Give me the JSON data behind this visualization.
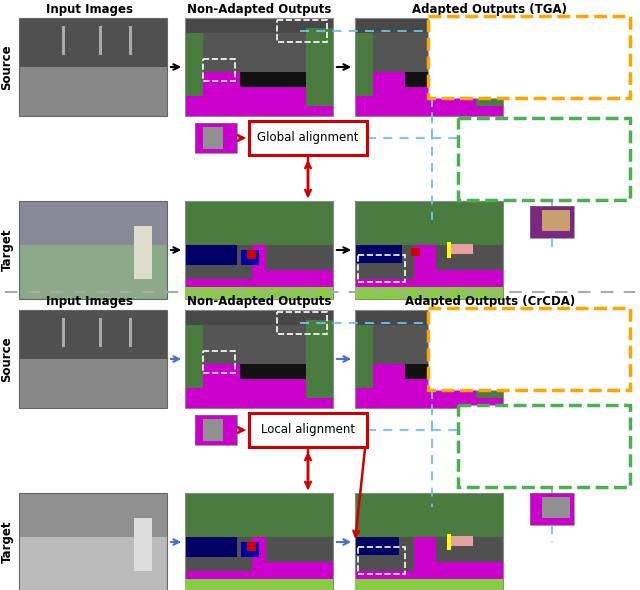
{
  "fig_width": 6.4,
  "fig_height": 5.9,
  "col1_title": "Input Images",
  "col2_title": "Non-Adapted Outputs",
  "title_tga": "Adapted Outputs (TGA)",
  "title_crcda": "Adapted Outputs (CrCDA)",
  "source_label": "Source",
  "target_label": "Target",
  "global_alignment": "Global alignment",
  "local_alignment": "Local alignment",
  "orange": "#FFA500",
  "green": "#4CAF50",
  "red": "#CC0000",
  "blue_arrow": "#4472C4",
  "dashed_blue": "#6BBFFF",
  "magenta": "#CC00CC",
  "dark_purple": "#7B2882",
  "seg_green": "#4a7c3f",
  "seg_blue": "#000080",
  "seg_road": "#CC00CC",
  "panel1_source_arrow": "black",
  "panel1_target_arrow": "black",
  "panel2_source_arrow": "#4472C4",
  "panel2_target_arrow": "#4472C4"
}
